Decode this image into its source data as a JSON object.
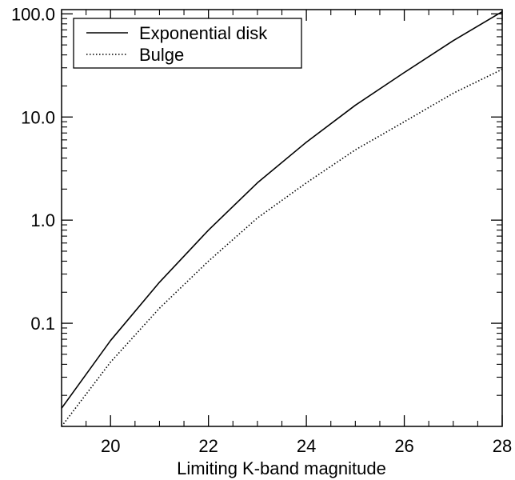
{
  "chart_data": {
    "type": "line",
    "title": "",
    "xlabel": "Limiting K-band magnitude",
    "ylabel": "",
    "xlim": [
      19,
      28
    ],
    "ylim": [
      0.01,
      110
    ],
    "yscale": "log",
    "grid": false,
    "legend_position": "top-left",
    "x_ticks": [
      20,
      22,
      24,
      26,
      28
    ],
    "x_tick_labels": [
      "20",
      "22",
      "24",
      "26",
      "28"
    ],
    "y_ticks": [
      0.1,
      1,
      10,
      100
    ],
    "y_tick_labels": [
      "0.1",
      "1.0",
      "10.0",
      "100.0"
    ],
    "series": [
      {
        "name": "Exponential disk",
        "line_style": "solid",
        "x": [
          19,
          20,
          21,
          22,
          23,
          24,
          25,
          26,
          27,
          28
        ],
        "y": [
          0.015,
          0.068,
          0.25,
          0.8,
          2.3,
          5.7,
          13,
          27,
          55,
          105
        ]
      },
      {
        "name": "Bulge",
        "line_style": "dotted",
        "x": [
          19,
          20,
          21,
          22,
          23,
          24,
          25,
          26,
          27,
          28
        ],
        "y": [
          0.01,
          0.042,
          0.14,
          0.4,
          1.05,
          2.3,
          4.8,
          9,
          17,
          29
        ]
      }
    ],
    "colors": {
      "axes": "#000000",
      "lines": "#000000"
    }
  }
}
